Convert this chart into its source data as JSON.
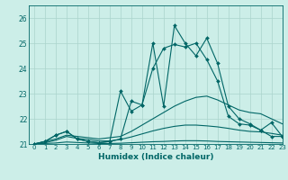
{
  "xlabel": "Humidex (Indice chaleur)",
  "xlim": [
    -0.5,
    23
  ],
  "ylim": [
    21.0,
    26.5
  ],
  "yticks": [
    21,
    22,
    23,
    24,
    25,
    26
  ],
  "xticks": [
    0,
    1,
    2,
    3,
    4,
    5,
    6,
    7,
    8,
    9,
    10,
    11,
    12,
    13,
    14,
    15,
    16,
    17,
    18,
    19,
    20,
    21,
    22,
    23
  ],
  "bg_color": "#cceee8",
  "grid_color": "#aad4cc",
  "line_color": "#006666",
  "series": [
    {
      "x": [
        0,
        1,
        2,
        3,
        4,
        5,
        6,
        7,
        8,
        9,
        10,
        11,
        12,
        13,
        14,
        15,
        16,
        17,
        18,
        19,
        20,
        21,
        22,
        23
      ],
      "y": [
        21.0,
        21.1,
        21.35,
        21.5,
        21.2,
        21.1,
        21.05,
        21.1,
        21.2,
        22.7,
        22.55,
        24.0,
        24.8,
        24.95,
        24.85,
        25.0,
        24.35,
        23.5,
        22.1,
        21.8,
        21.75,
        21.55,
        21.3,
        21.3
      ],
      "has_marker": true
    },
    {
      "x": [
        0,
        1,
        2,
        3,
        4,
        5,
        6,
        7,
        8,
        9,
        10,
        11,
        12,
        13,
        14,
        15,
        16,
        17,
        18,
        19,
        20,
        21,
        22,
        23
      ],
      "y": [
        21.0,
        21.1,
        21.35,
        21.5,
        21.2,
        21.1,
        21.05,
        21.1,
        23.1,
        22.3,
        22.55,
        25.0,
        22.5,
        25.7,
        25.0,
        24.5,
        25.2,
        24.2,
        22.5,
        22.0,
        21.8,
        21.55,
        21.85,
        21.3
      ],
      "has_marker": true
    },
    {
      "x": [
        0,
        1,
        2,
        3,
        4,
        5,
        6,
        7,
        8,
        9,
        10,
        11,
        12,
        13,
        14,
        15,
        16,
        17,
        18,
        19,
        20,
        21,
        22,
        23
      ],
      "y": [
        21.0,
        21.1,
        21.2,
        21.35,
        21.3,
        21.25,
        21.2,
        21.25,
        21.3,
        21.5,
        21.75,
        22.0,
        22.25,
        22.5,
        22.7,
        22.85,
        22.9,
        22.75,
        22.55,
        22.35,
        22.25,
        22.2,
        22.0,
        21.8
      ],
      "has_marker": false
    },
    {
      "x": [
        0,
        1,
        2,
        3,
        4,
        5,
        6,
        7,
        8,
        9,
        10,
        11,
        12,
        13,
        14,
        15,
        16,
        17,
        18,
        19,
        20,
        21,
        22,
        23
      ],
      "y": [
        21.0,
        21.05,
        21.15,
        21.3,
        21.22,
        21.18,
        21.12,
        21.12,
        21.18,
        21.28,
        21.4,
        21.52,
        21.62,
        21.7,
        21.75,
        21.75,
        21.72,
        21.68,
        21.62,
        21.55,
        21.5,
        21.48,
        21.42,
        21.35
      ],
      "has_marker": false
    },
    {
      "x": [
        0,
        1,
        2,
        3,
        4,
        5,
        6,
        7,
        8,
        9,
        10,
        11,
        12,
        13,
        14,
        15,
        16,
        17,
        18,
        19,
        20,
        21,
        22,
        23
      ],
      "y": [
        21.0,
        21.02,
        21.04,
        21.08,
        21.06,
        21.04,
        21.02,
        21.02,
        21.03,
        21.05,
        21.07,
        21.09,
        21.1,
        21.12,
        21.13,
        21.13,
        21.12,
        21.1,
        21.09,
        21.08,
        21.07,
        21.06,
        21.05,
        21.04
      ],
      "has_marker": false
    }
  ]
}
